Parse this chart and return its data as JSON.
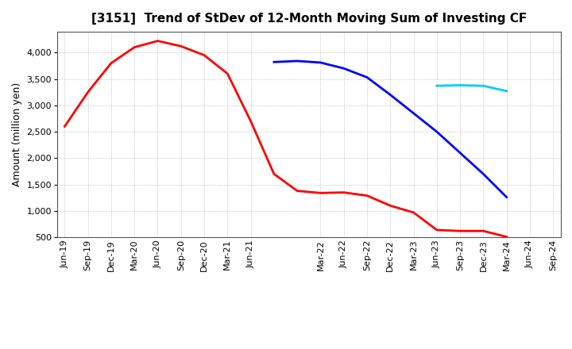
{
  "title": "[3151]  Trend of StDev of 12-Month Moving Sum of Investing CF",
  "ylabel": "Amount (million yen)",
  "background_color": "#ffffff",
  "grid_color": "#aaaaaa",
  "ylim": [
    500,
    4400
  ],
  "yticks": [
    500,
    1000,
    1500,
    2000,
    2500,
    3000,
    3500,
    4000
  ],
  "series": {
    "3 Years": {
      "color": "#ff0000",
      "dates": [
        "Jun-19",
        "Sep-19",
        "Dec-19",
        "Mar-20",
        "Jun-20",
        "Sep-20",
        "Dec-20",
        "Mar-21",
        "Jun-21",
        "Sep-21",
        "Dec-21",
        "Mar-22",
        "Jun-22",
        "Sep-22",
        "Dec-22",
        "Mar-23",
        "Jun-23",
        "Sep-23",
        "Dec-23",
        "Mar-24"
      ],
      "values": [
        2600,
        3250,
        3800,
        4100,
        4220,
        4120,
        3950,
        3600,
        2700,
        1700,
        1380,
        1340,
        1350,
        1290,
        1100,
        970,
        640,
        620,
        620,
        510
      ]
    },
    "5 Years": {
      "color": "#0000ff",
      "dates": [
        "Sep-21",
        "Dec-21",
        "Mar-22",
        "Jun-22",
        "Sep-22",
        "Dec-22",
        "Mar-23",
        "Jun-23",
        "Sep-23",
        "Dec-23",
        "Mar-24"
      ],
      "values": [
        3820,
        3840,
        3810,
        3700,
        3530,
        3200,
        2850,
        2500,
        2100,
        1700,
        1260
      ]
    },
    "7 Years": {
      "color": "#00ccff",
      "dates": [
        "Jun-23",
        "Sep-23",
        "Dec-23",
        "Mar-24"
      ],
      "values": [
        3370,
        3380,
        3370,
        3270
      ]
    },
    "10 Years": {
      "color": "#008800",
      "dates": [],
      "values": []
    }
  },
  "xtick_labels": [
    "Jun-19",
    "Sep-19",
    "Dec-19",
    "Mar-20",
    "Jun-20",
    "Sep-20",
    "Dec-20",
    "Mar-21",
    "Jun-21",
    "Mar-22",
    "Jun-22",
    "Sep-22",
    "Dec-22",
    "Mar-23",
    "Jun-23",
    "Sep-23",
    "Dec-23",
    "Mar-24",
    "Jun-24",
    "Sep-24"
  ],
  "title_fontsize": 11,
  "label_fontsize": 9,
  "tick_fontsize": 8,
  "legend_fontsize": 9
}
